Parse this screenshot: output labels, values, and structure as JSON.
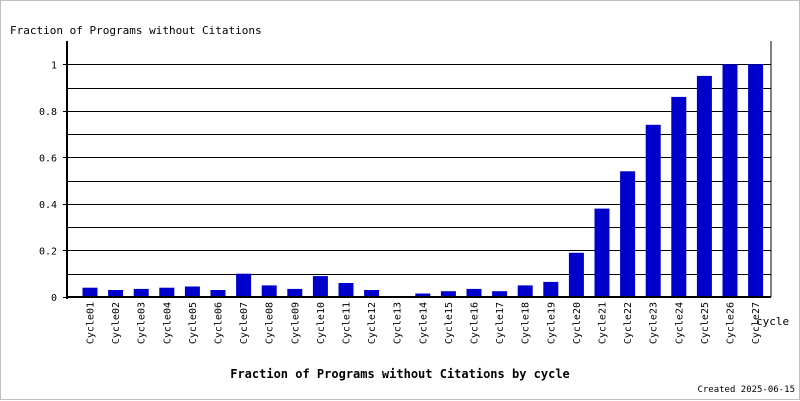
{
  "chart_data": {
    "type": "bar",
    "title": "Fraction of Programs without Citations by cycle",
    "ylabel": "Fraction of Programs without Citations",
    "xlabel": "cycle",
    "footer": "Created 2025-06-15",
    "categories": [
      "Cycle01",
      "Cycle02",
      "Cycle03",
      "Cycle04",
      "Cycle05",
      "Cycle06",
      "Cycle07",
      "Cycle08",
      "Cycle09",
      "Cycle10",
      "Cycle11",
      "Cycle12",
      "Cycle13",
      "Cycle14",
      "Cycle15",
      "Cycle16",
      "Cycle17",
      "Cycle18",
      "Cycle19",
      "Cycle20",
      "Cycle21",
      "Cycle22",
      "Cycle23",
      "Cycle24",
      "Cycle25",
      "Cycle26",
      "Cycle27"
    ],
    "values": [
      0.04,
      0.03,
      0.035,
      0.04,
      0.045,
      0.03,
      0.1,
      0.05,
      0.035,
      0.09,
      0.06,
      0.03,
      0.0,
      0.015,
      0.025,
      0.035,
      0.025,
      0.05,
      0.065,
      0.19,
      0.38,
      0.54,
      0.74,
      0.86,
      0.95,
      1.0,
      1.0
    ],
    "ylim": [
      0,
      1.1
    ],
    "yticks": [
      0,
      0.2,
      0.4,
      0.6,
      0.8,
      1
    ],
    "ytick_labels": [
      "0",
      "0.2",
      "0.4",
      "0.6",
      "0.8",
      "1"
    ],
    "grid": true,
    "bar_color": "#0000cc"
  }
}
